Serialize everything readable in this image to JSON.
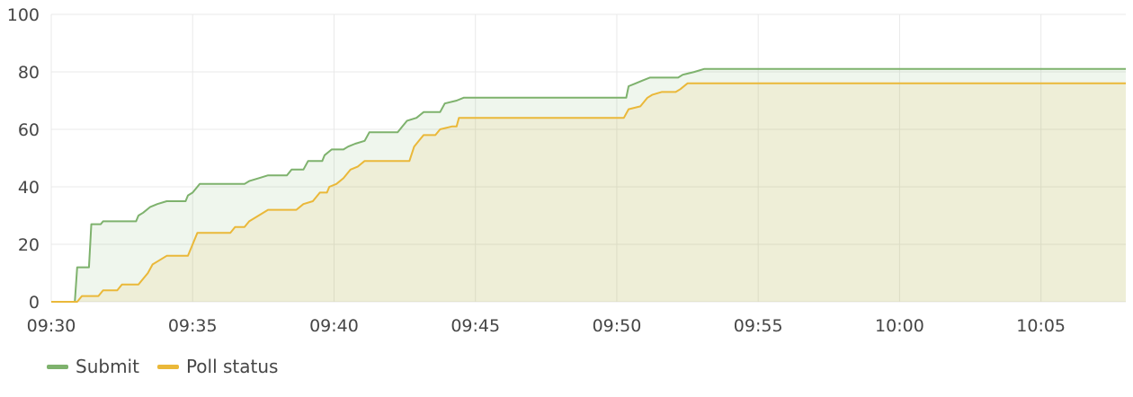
{
  "chart_data": {
    "type": "area",
    "title": "",
    "xlabel": "",
    "ylabel": "",
    "ylim": [
      0,
      100
    ],
    "yticks": [
      0,
      20,
      40,
      60,
      80,
      100
    ],
    "xlim": [
      "09:30",
      "10:08"
    ],
    "xticks": [
      "09:30",
      "09:35",
      "09:40",
      "09:45",
      "09:50",
      "09:55",
      "10:00",
      "10:05"
    ],
    "grid": true,
    "legend_position": "bottom-left",
    "series": [
      {
        "name": "Submit",
        "color": "#7eb26d",
        "fill": "#eaf3e5",
        "points": [
          [
            "09:30:00",
            0
          ],
          [
            "09:30:50",
            0
          ],
          [
            "09:30:55",
            12
          ],
          [
            "09:31:20",
            12
          ],
          [
            "09:31:25",
            27
          ],
          [
            "09:31:45",
            27
          ],
          [
            "09:31:50",
            28
          ],
          [
            "09:33:00",
            28
          ],
          [
            "09:33:05",
            30
          ],
          [
            "09:33:15",
            31
          ],
          [
            "09:33:30",
            33
          ],
          [
            "09:33:45",
            34
          ],
          [
            "09:34:05",
            35
          ],
          [
            "09:34:45",
            35
          ],
          [
            "09:34:50",
            37
          ],
          [
            "09:35:00",
            38
          ],
          [
            "09:35:10",
            40
          ],
          [
            "09:35:15",
            41
          ],
          [
            "09:36:50",
            41
          ],
          [
            "09:37:00",
            42
          ],
          [
            "09:37:20",
            43
          ],
          [
            "09:37:40",
            44
          ],
          [
            "09:38:20",
            44
          ],
          [
            "09:38:30",
            46
          ],
          [
            "09:38:55",
            46
          ],
          [
            "09:39:05",
            49
          ],
          [
            "09:39:35",
            49
          ],
          [
            "09:39:40",
            51
          ],
          [
            "09:39:55",
            53
          ],
          [
            "09:40:20",
            53
          ],
          [
            "09:40:30",
            54
          ],
          [
            "09:40:45",
            55
          ],
          [
            "09:41:05",
            56
          ],
          [
            "09:41:15",
            59
          ],
          [
            "09:42:15",
            59
          ],
          [
            "09:42:25",
            61
          ],
          [
            "09:42:35",
            63
          ],
          [
            "09:42:55",
            64
          ],
          [
            "09:43:10",
            66
          ],
          [
            "09:43:45",
            66
          ],
          [
            "09:43:55",
            69
          ],
          [
            "09:44:20",
            70
          ],
          [
            "09:44:35",
            71
          ],
          [
            "09:50:20",
            71
          ],
          [
            "09:50:25",
            75
          ],
          [
            "09:50:40",
            76
          ],
          [
            "09:50:55",
            77
          ],
          [
            "09:51:10",
            78
          ],
          [
            "09:52:10",
            78
          ],
          [
            "09:52:20",
            79
          ],
          [
            "09:52:45",
            80
          ],
          [
            "09:53:05",
            81
          ],
          [
            "10:08:00",
            81
          ]
        ]
      },
      {
        "name": "Poll status",
        "color": "#eab839",
        "fill": "#efefdf",
        "points": [
          [
            "09:30:00",
            0
          ],
          [
            "09:30:55",
            0
          ],
          [
            "09:31:05",
            2
          ],
          [
            "09:31:40",
            2
          ],
          [
            "09:31:50",
            4
          ],
          [
            "09:32:20",
            4
          ],
          [
            "09:32:30",
            6
          ],
          [
            "09:33:05",
            6
          ],
          [
            "09:33:15",
            8
          ],
          [
            "09:33:25",
            10
          ],
          [
            "09:33:35",
            13
          ],
          [
            "09:33:45",
            14
          ],
          [
            "09:34:05",
            16
          ],
          [
            "09:34:50",
            16
          ],
          [
            "09:35:00",
            20
          ],
          [
            "09:35:10",
            24
          ],
          [
            "09:36:20",
            24
          ],
          [
            "09:36:30",
            26
          ],
          [
            "09:36:50",
            26
          ],
          [
            "09:37:00",
            28
          ],
          [
            "09:37:20",
            30
          ],
          [
            "09:37:40",
            32
          ],
          [
            "09:38:40",
            32
          ],
          [
            "09:38:55",
            34
          ],
          [
            "09:39:15",
            35
          ],
          [
            "09:39:30",
            38
          ],
          [
            "09:39:45",
            38
          ],
          [
            "09:39:50",
            40
          ],
          [
            "09:40:05",
            41
          ],
          [
            "09:40:20",
            43
          ],
          [
            "09:40:35",
            46
          ],
          [
            "09:40:50",
            47
          ],
          [
            "09:41:05",
            49
          ],
          [
            "09:42:40",
            49
          ],
          [
            "09:42:50",
            54
          ],
          [
            "09:43:00",
            56
          ],
          [
            "09:43:10",
            58
          ],
          [
            "09:43:35",
            58
          ],
          [
            "09:43:45",
            60
          ],
          [
            "09:44:10",
            61
          ],
          [
            "09:44:20",
            61
          ],
          [
            "09:44:25",
            64
          ],
          [
            "09:50:15",
            64
          ],
          [
            "09:50:25",
            67
          ],
          [
            "09:50:50",
            68
          ],
          [
            "09:51:05",
            71
          ],
          [
            "09:51:15",
            72
          ],
          [
            "09:51:35",
            73
          ],
          [
            "09:52:05",
            73
          ],
          [
            "09:52:15",
            74
          ],
          [
            "09:52:30",
            76
          ],
          [
            "10:08:00",
            76
          ]
        ]
      }
    ]
  }
}
